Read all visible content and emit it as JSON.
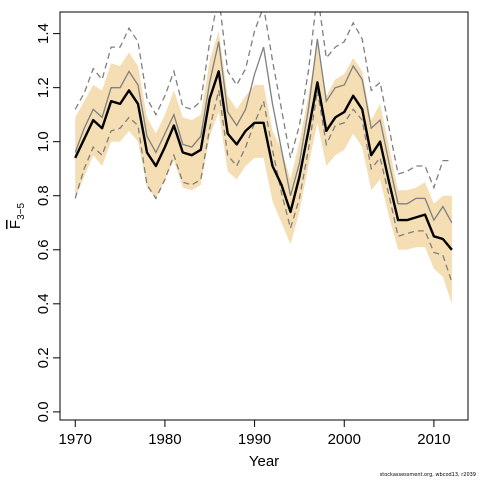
{
  "chart_data": {
    "type": "line",
    "xlabel": "Year",
    "ylabel_main": "F",
    "ylabel_sub": "3−5",
    "xlim": [
      1968.3,
      2013.8
    ],
    "ylim": [
      -0.03,
      1.48
    ],
    "x_ticks": [
      1970,
      1980,
      1990,
      2000,
      2010
    ],
    "y_ticks": [
      "0.0",
      "0.2",
      "0.4",
      "0.6",
      "0.8",
      "1.0",
      "1.2",
      "1.4"
    ],
    "grid": false,
    "x": [
      1970,
      1971,
      1972,
      1973,
      1974,
      1975,
      1976,
      1977,
      1978,
      1979,
      1980,
      1981,
      1982,
      1983,
      1984,
      1985,
      1986,
      1987,
      1988,
      1989,
      1990,
      1991,
      1992,
      1993,
      1994,
      1995,
      1996,
      1997,
      1998,
      1999,
      2000,
      2001,
      2002,
      2003,
      2004,
      2005,
      2006,
      2007,
      2008,
      2009,
      2010,
      2011,
      2012
    ],
    "series": [
      {
        "role": "estimate",
        "color": "#000000",
        "values": [
          0.94,
          1.01,
          1.08,
          1.05,
          1.15,
          1.14,
          1.19,
          1.14,
          0.96,
          0.91,
          0.98,
          1.06,
          0.96,
          0.95,
          0.97,
          1.16,
          1.26,
          1.03,
          0.99,
          1.04,
          1.07,
          1.07,
          0.91,
          0.84,
          0.74,
          0.87,
          1.04,
          1.22,
          1.04,
          1.09,
          1.11,
          1.17,
          1.12,
          0.95,
          1.0,
          0.85,
          0.71,
          0.71,
          0.72,
          0.73,
          0.65,
          0.64,
          0.6
        ]
      },
      {
        "role": "lower_band",
        "color": "#f5deb3",
        "values": [
          0.79,
          0.87,
          0.95,
          0.91,
          1.0,
          1.0,
          1.04,
          1.0,
          0.83,
          0.79,
          0.86,
          0.93,
          0.83,
          0.82,
          0.84,
          1.02,
          1.11,
          0.89,
          0.86,
          0.91,
          0.94,
          0.94,
          0.78,
          0.7,
          0.62,
          0.74,
          0.91,
          1.07,
          0.91,
          0.95,
          0.97,
          1.03,
          0.98,
          0.82,
          0.86,
          0.72,
          0.6,
          0.6,
          0.61,
          0.61,
          0.53,
          0.5,
          0.4
        ]
      },
      {
        "role": "upper_band",
        "color": "#f5deb3",
        "values": [
          1.09,
          1.15,
          1.21,
          1.19,
          1.29,
          1.28,
          1.33,
          1.28,
          1.09,
          1.03,
          1.1,
          1.19,
          1.09,
          1.08,
          1.1,
          1.3,
          1.41,
          1.17,
          1.12,
          1.17,
          1.21,
          1.21,
          1.04,
          0.97,
          0.86,
          1.0,
          1.17,
          1.37,
          1.17,
          1.23,
          1.25,
          1.31,
          1.26,
          1.08,
          1.14,
          0.98,
          0.82,
          0.82,
          0.83,
          0.85,
          0.77,
          0.8,
          0.8
        ]
      },
      {
        "role": "retro_estimate",
        "color": "#7f7f7f",
        "values": [
          0.96,
          1.05,
          1.12,
          1.09,
          1.2,
          1.2,
          1.26,
          1.21,
          1.02,
          0.96,
          1.03,
          1.1,
          0.99,
          0.98,
          1.02,
          1.22,
          1.37,
          1.11,
          1.06,
          1.12,
          1.25,
          1.35,
          1.14,
          0.97,
          0.8,
          0.92,
          1.12,
          1.38,
          1.15,
          1.2,
          1.21,
          1.28,
          1.23,
          1.05,
          1.08,
          0.92,
          0.77,
          0.77,
          0.79,
          0.79,
          0.71,
          0.76,
          0.7
        ]
      },
      {
        "role": "retro_lower",
        "color": "#7f7f7f",
        "values": [
          0.79,
          0.9,
          0.98,
          0.95,
          1.04,
          1.05,
          1.09,
          1.06,
          0.84,
          0.79,
          0.86,
          0.95,
          0.85,
          0.84,
          0.86,
          1.05,
          1.19,
          0.95,
          0.91,
          0.98,
          1.07,
          1.15,
          0.97,
          0.81,
          0.68,
          0.79,
          0.97,
          1.19,
          0.99,
          1.06,
          1.07,
          1.12,
          1.08,
          0.9,
          0.94,
          0.8,
          0.65,
          0.66,
          0.67,
          0.67,
          0.59,
          0.58,
          0.48
        ]
      },
      {
        "role": "retro_upper",
        "color": "#7f7f7f",
        "values": [
          1.12,
          1.18,
          1.27,
          1.23,
          1.35,
          1.35,
          1.42,
          1.37,
          1.16,
          1.1,
          1.17,
          1.26,
          1.13,
          1.12,
          1.15,
          1.37,
          1.54,
          1.26,
          1.21,
          1.27,
          1.41,
          1.5,
          1.3,
          1.12,
          0.94,
          1.06,
          1.26,
          1.55,
          1.31,
          1.35,
          1.37,
          1.44,
          1.38,
          1.19,
          1.22,
          1.05,
          0.88,
          0.89,
          0.91,
          0.91,
          0.83,
          0.93,
          0.93
        ]
      }
    ]
  },
  "credit": "stockassessment.org, wbcod13, r2039"
}
